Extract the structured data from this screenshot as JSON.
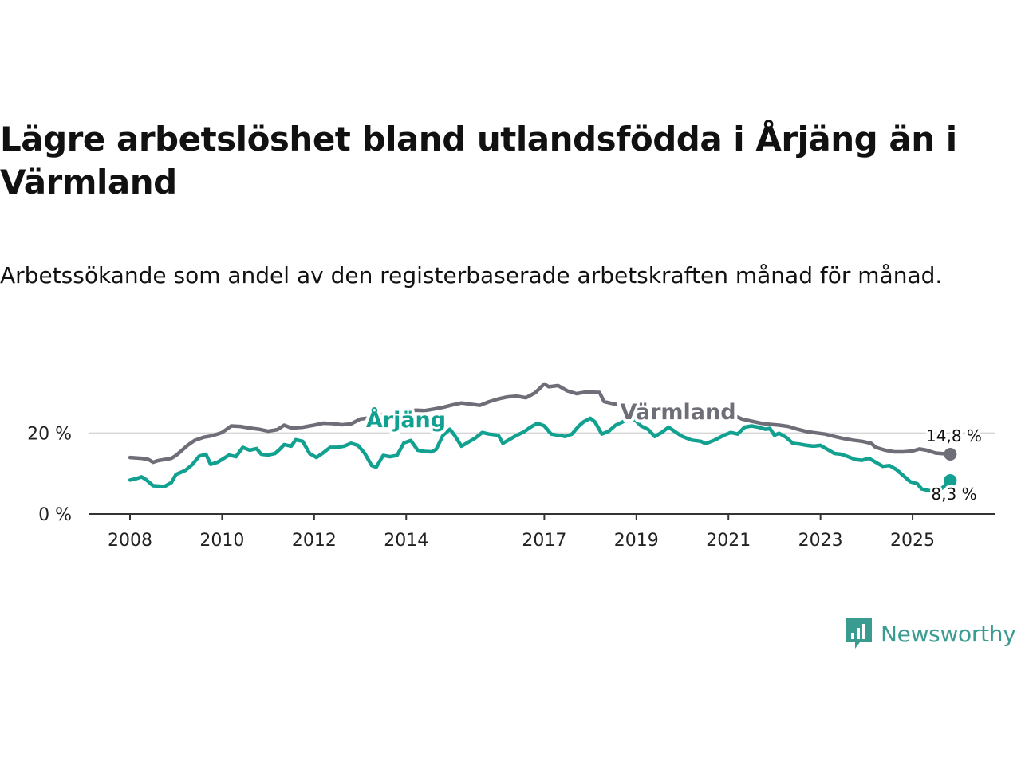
{
  "header": {
    "title": "Lägre arbetslöshet bland utlandsfödda i Årjäng än i Värmland",
    "subtitle": "Arbetssökande som andel av den registerbaserade arbetskraften månad för månad."
  },
  "brand": {
    "name": "Newsworthy",
    "color": "#3a9c90"
  },
  "chart_data": {
    "type": "line",
    "title": "Lägre arbetslöshet bland utlandsfödda i Årjäng än i Värmland",
    "xlabel": "",
    "ylabel": "",
    "xlim": [
      2008.0,
      2025.9
    ],
    "ylim": [
      0,
      32
    ],
    "x_ticks": [
      {
        "value": 2008,
        "label": "2008"
      },
      {
        "value": 2010,
        "label": "2010"
      },
      {
        "value": 2012,
        "label": "2012"
      },
      {
        "value": 2014,
        "label": "2014"
      },
      {
        "value": 2017,
        "label": "2017"
      },
      {
        "value": 2019,
        "label": "2019"
      },
      {
        "value": 2021,
        "label": "2021"
      },
      {
        "value": 2023,
        "label": "2023"
      },
      {
        "value": 2025,
        "label": "2025"
      }
    ],
    "y_ticks": [
      {
        "value": 0,
        "label": "0 %"
      },
      {
        "value": 20,
        "label": "20 %"
      }
    ],
    "series": [
      {
        "name": "Värmland",
        "color": "#6e6e78",
        "end_label": "14,8 %",
        "points": [
          [
            2008.0,
            14.0
          ],
          [
            2008.25,
            13.8
          ],
          [
            2008.4,
            13.5
          ],
          [
            2008.5,
            12.8
          ],
          [
            2008.6,
            13.2
          ],
          [
            2008.75,
            13.5
          ],
          [
            2008.9,
            13.8
          ],
          [
            2009.0,
            14.5
          ],
          [
            2009.1,
            15.5
          ],
          [
            2009.25,
            17.0
          ],
          [
            2009.4,
            18.2
          ],
          [
            2009.6,
            19.0
          ],
          [
            2009.75,
            19.3
          ],
          [
            2009.9,
            19.8
          ],
          [
            2010.0,
            20.2
          ],
          [
            2010.2,
            21.8
          ],
          [
            2010.4,
            21.7
          ],
          [
            2010.6,
            21.3
          ],
          [
            2010.8,
            21.0
          ],
          [
            2011.0,
            20.5
          ],
          [
            2011.2,
            20.9
          ],
          [
            2011.35,
            22.0
          ],
          [
            2011.5,
            21.3
          ],
          [
            2011.75,
            21.5
          ],
          [
            2012.0,
            22.0
          ],
          [
            2012.2,
            22.5
          ],
          [
            2012.4,
            22.4
          ],
          [
            2012.6,
            22.1
          ],
          [
            2012.8,
            22.3
          ],
          [
            2013.0,
            23.5
          ],
          [
            2013.2,
            23.8
          ],
          [
            2013.4,
            24.6
          ],
          [
            2013.6,
            24.3
          ],
          [
            2013.8,
            25.0
          ],
          [
            2014.0,
            25.3
          ],
          [
            2014.2,
            25.7
          ],
          [
            2014.4,
            25.6
          ],
          [
            2014.6,
            26.0
          ],
          [
            2014.8,
            26.4
          ],
          [
            2015.0,
            27.0
          ],
          [
            2015.2,
            27.5
          ],
          [
            2015.4,
            27.2
          ],
          [
            2015.6,
            26.9
          ],
          [
            2015.8,
            27.8
          ],
          [
            2016.0,
            28.5
          ],
          [
            2016.2,
            29.0
          ],
          [
            2016.4,
            29.2
          ],
          [
            2016.6,
            28.8
          ],
          [
            2016.8,
            30.0
          ],
          [
            2017.0,
            32.2
          ],
          [
            2017.1,
            31.5
          ],
          [
            2017.3,
            31.8
          ],
          [
            2017.5,
            30.5
          ],
          [
            2017.7,
            29.8
          ],
          [
            2017.9,
            30.2
          ],
          [
            2018.2,
            30.1
          ],
          [
            2018.3,
            27.8
          ],
          [
            2018.5,
            27.3
          ],
          [
            2018.7,
            26.8
          ],
          [
            2018.9,
            26.4
          ],
          [
            2019.1,
            26.0
          ],
          [
            2019.3,
            25.8
          ],
          [
            2019.5,
            25.4
          ],
          [
            2019.7,
            25.0
          ],
          [
            2019.9,
            25.5
          ],
          [
            2020.1,
            25.2
          ],
          [
            2020.3,
            25.8
          ],
          [
            2020.5,
            25.4
          ],
          [
            2020.7,
            25.6
          ],
          [
            2020.9,
            25.0
          ],
          [
            2021.1,
            24.5
          ],
          [
            2021.3,
            23.5
          ],
          [
            2021.5,
            23.0
          ],
          [
            2021.7,
            22.5
          ],
          [
            2021.9,
            22.2
          ],
          [
            2022.1,
            22.0
          ],
          [
            2022.3,
            21.7
          ],
          [
            2022.5,
            21.0
          ],
          [
            2022.7,
            20.4
          ],
          [
            2022.9,
            20.1
          ],
          [
            2023.1,
            19.8
          ],
          [
            2023.3,
            19.2
          ],
          [
            2023.5,
            18.7
          ],
          [
            2023.7,
            18.3
          ],
          [
            2023.9,
            18.0
          ],
          [
            2024.1,
            17.5
          ],
          [
            2024.2,
            16.5
          ],
          [
            2024.4,
            15.8
          ],
          [
            2024.6,
            15.4
          ],
          [
            2024.8,
            15.4
          ],
          [
            2025.0,
            15.6
          ],
          [
            2025.15,
            16.1
          ],
          [
            2025.3,
            15.8
          ],
          [
            2025.5,
            15.1
          ],
          [
            2025.7,
            14.9
          ],
          [
            2025.82,
            14.8
          ]
        ]
      },
      {
        "name": "Årjäng",
        "color": "#12a190",
        "end_label": "8,3 %",
        "points": [
          [
            2008.0,
            8.4
          ],
          [
            2008.15,
            8.8
          ],
          [
            2008.25,
            9.2
          ],
          [
            2008.35,
            8.5
          ],
          [
            2008.5,
            7.0
          ],
          [
            2008.75,
            6.8
          ],
          [
            2008.9,
            7.8
          ],
          [
            2009.0,
            9.8
          ],
          [
            2009.2,
            10.8
          ],
          [
            2009.35,
            12.2
          ],
          [
            2009.5,
            14.3
          ],
          [
            2009.65,
            14.8
          ],
          [
            2009.75,
            12.3
          ],
          [
            2009.9,
            12.8
          ],
          [
            2010.0,
            13.5
          ],
          [
            2010.15,
            14.6
          ],
          [
            2010.3,
            14.2
          ],
          [
            2010.45,
            16.5
          ],
          [
            2010.6,
            15.8
          ],
          [
            2010.75,
            16.2
          ],
          [
            2010.85,
            14.8
          ],
          [
            2011.0,
            14.6
          ],
          [
            2011.15,
            15.0
          ],
          [
            2011.25,
            16.0
          ],
          [
            2011.35,
            17.2
          ],
          [
            2011.5,
            16.8
          ],
          [
            2011.6,
            18.4
          ],
          [
            2011.75,
            18.0
          ],
          [
            2011.9,
            15.0
          ],
          [
            2012.05,
            14.0
          ],
          [
            2012.2,
            15.2
          ],
          [
            2012.35,
            16.5
          ],
          [
            2012.5,
            16.5
          ],
          [
            2012.65,
            16.8
          ],
          [
            2012.8,
            17.5
          ],
          [
            2012.95,
            17.0
          ],
          [
            2013.1,
            15.0
          ],
          [
            2013.25,
            12.0
          ],
          [
            2013.35,
            11.6
          ],
          [
            2013.5,
            14.5
          ],
          [
            2013.65,
            14.2
          ],
          [
            2013.8,
            14.5
          ],
          [
            2013.95,
            17.6
          ],
          [
            2014.1,
            18.2
          ],
          [
            2014.25,
            15.8
          ],
          [
            2014.4,
            15.5
          ],
          [
            2014.55,
            15.4
          ],
          [
            2014.65,
            16.0
          ],
          [
            2014.8,
            19.5
          ],
          [
            2014.95,
            21.0
          ],
          [
            2015.05,
            19.5
          ],
          [
            2015.2,
            16.8
          ],
          [
            2015.35,
            17.8
          ],
          [
            2015.5,
            18.8
          ],
          [
            2015.65,
            20.2
          ],
          [
            2015.8,
            19.8
          ],
          [
            2016.0,
            19.5
          ],
          [
            2016.1,
            17.5
          ],
          [
            2016.25,
            18.5
          ],
          [
            2016.4,
            19.5
          ],
          [
            2016.55,
            20.3
          ],
          [
            2016.7,
            21.5
          ],
          [
            2016.85,
            22.5
          ],
          [
            2017.0,
            21.8
          ],
          [
            2017.15,
            19.8
          ],
          [
            2017.3,
            19.5
          ],
          [
            2017.45,
            19.2
          ],
          [
            2017.6,
            19.8
          ],
          [
            2017.75,
            21.8
          ],
          [
            2017.85,
            22.8
          ],
          [
            2018.0,
            23.7
          ],
          [
            2018.1,
            22.8
          ],
          [
            2018.25,
            19.8
          ],
          [
            2018.4,
            20.5
          ],
          [
            2018.55,
            22.0
          ],
          [
            2018.7,
            22.8
          ],
          [
            2018.85,
            23.8
          ],
          [
            2019.0,
            23.0
          ],
          [
            2019.1,
            21.8
          ],
          [
            2019.25,
            21.0
          ],
          [
            2019.4,
            19.2
          ],
          [
            2019.55,
            20.2
          ],
          [
            2019.7,
            21.5
          ],
          [
            2019.85,
            20.3
          ],
          [
            2020.0,
            19.2
          ],
          [
            2020.2,
            18.3
          ],
          [
            2020.4,
            18.0
          ],
          [
            2020.5,
            17.4
          ],
          [
            2020.7,
            18.3
          ],
          [
            2020.9,
            19.5
          ],
          [
            2021.05,
            20.2
          ],
          [
            2021.2,
            19.8
          ],
          [
            2021.35,
            21.5
          ],
          [
            2021.5,
            21.8
          ],
          [
            2021.65,
            21.5
          ],
          [
            2021.8,
            21.0
          ],
          [
            2021.9,
            21.2
          ],
          [
            2022.0,
            19.5
          ],
          [
            2022.1,
            20.0
          ],
          [
            2022.25,
            19.0
          ],
          [
            2022.4,
            17.5
          ],
          [
            2022.55,
            17.3
          ],
          [
            2022.7,
            17.0
          ],
          [
            2022.85,
            16.8
          ],
          [
            2023.0,
            17.0
          ],
          [
            2023.15,
            16.0
          ],
          [
            2023.3,
            15.0
          ],
          [
            2023.45,
            14.8
          ],
          [
            2023.6,
            14.2
          ],
          [
            2023.75,
            13.5
          ],
          [
            2023.9,
            13.3
          ],
          [
            2024.05,
            13.8
          ],
          [
            2024.2,
            12.8
          ],
          [
            2024.35,
            11.8
          ],
          [
            2024.5,
            12.0
          ],
          [
            2024.65,
            11.0
          ],
          [
            2024.8,
            9.5
          ],
          [
            2024.95,
            8.0
          ],
          [
            2025.1,
            7.5
          ],
          [
            2025.2,
            6.2
          ],
          [
            2025.35,
            5.8
          ],
          [
            2025.5,
            5.6
          ],
          [
            2025.6,
            6.0
          ],
          [
            2025.7,
            7.0
          ],
          [
            2025.82,
            8.3
          ]
        ]
      }
    ]
  }
}
